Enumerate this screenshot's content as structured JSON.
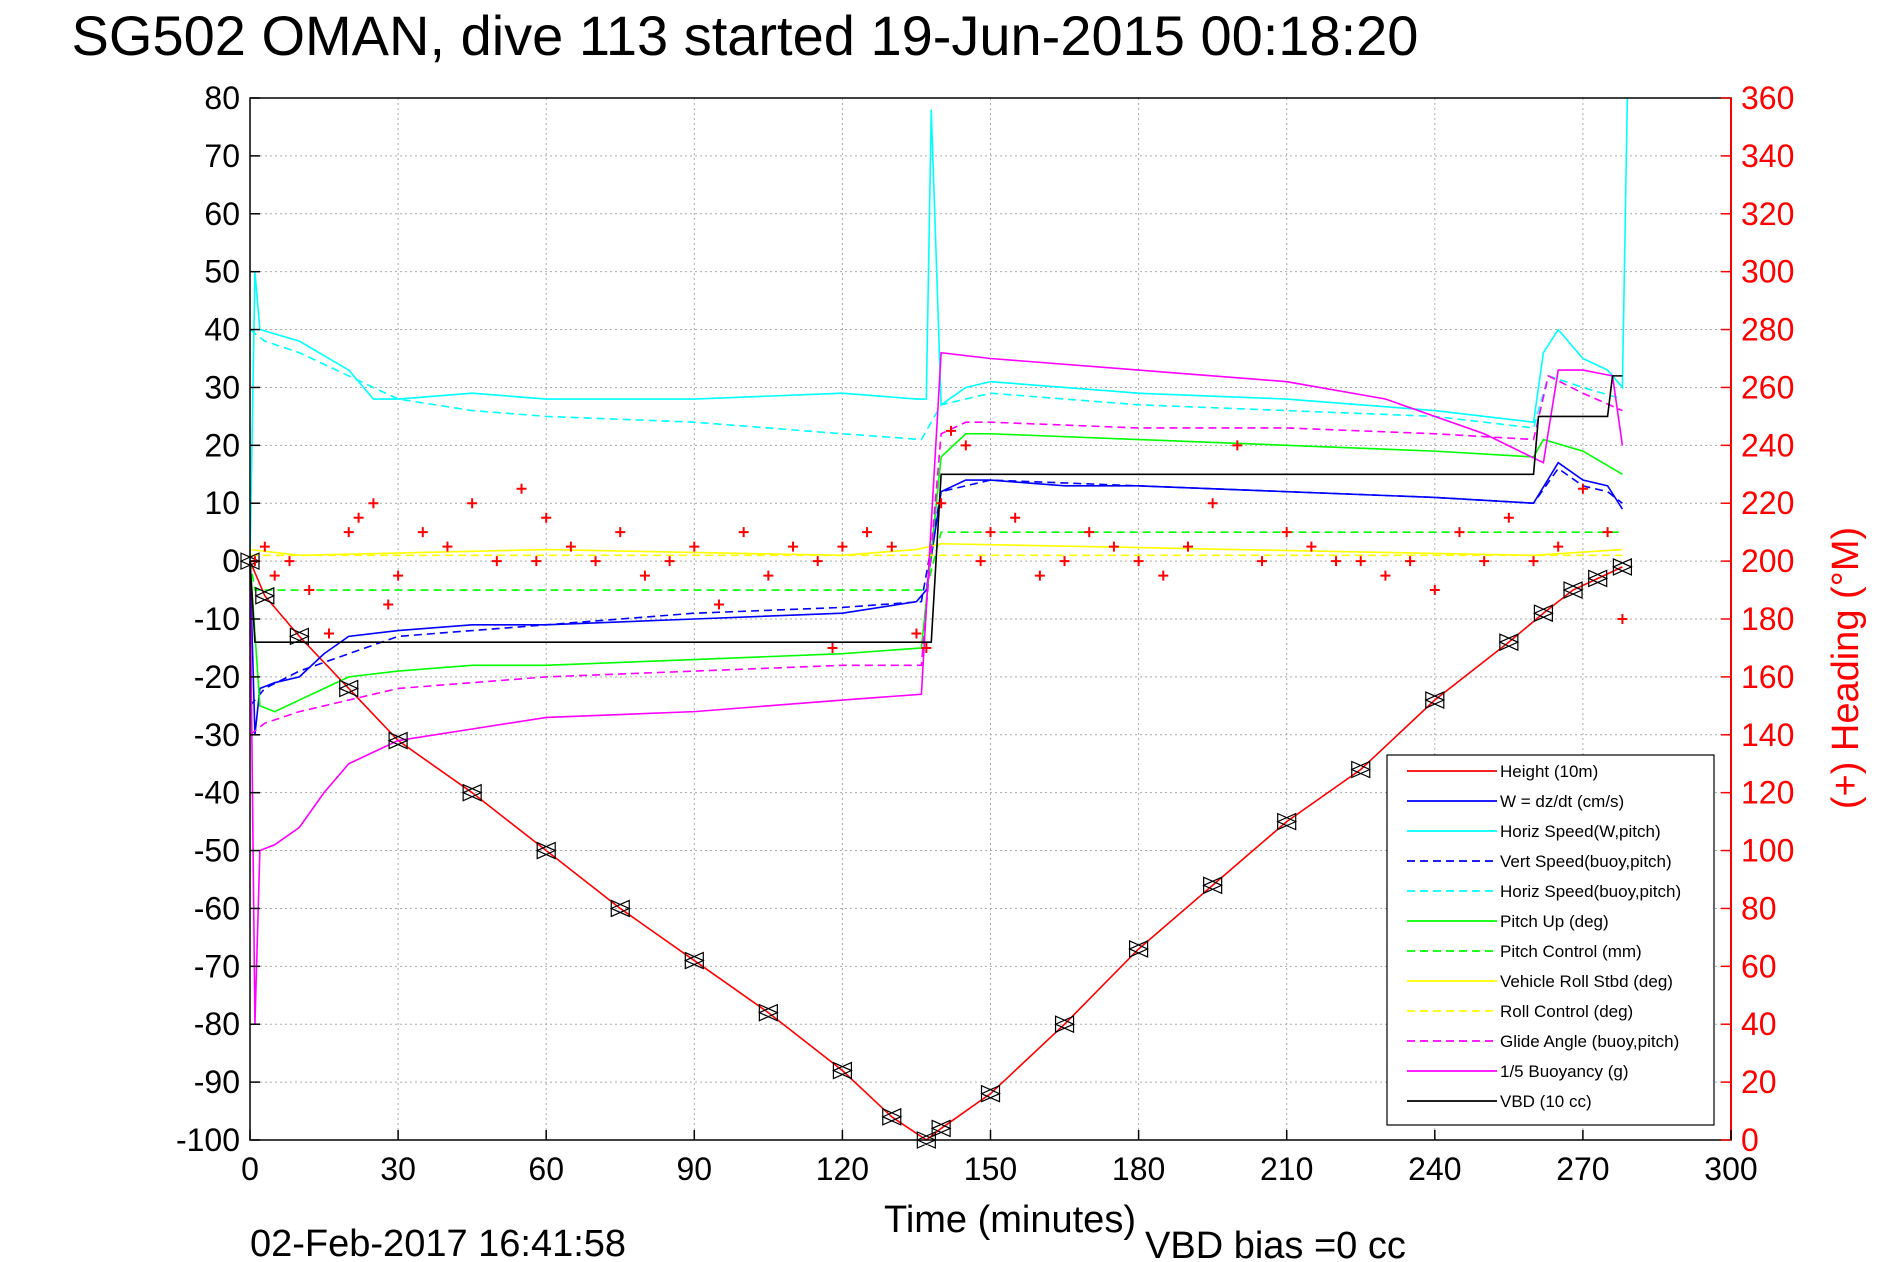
{
  "chart_data": {
    "type": "line",
    "title": "SG502 OMAN, dive 113 started 19-Jun-2015 00:18:20",
    "xlabel": "Time (minutes)",
    "ylabel": "",
    "y2label": "(+) Heading (°M)",
    "xlim": [
      0,
      300
    ],
    "ylim": [
      -100,
      80
    ],
    "y2lim": [
      0,
      360
    ],
    "xticks": [
      "0",
      "30",
      "60",
      "90",
      "120",
      "150",
      "180",
      "210",
      "240",
      "270",
      "300"
    ],
    "yticks": [
      "80",
      "70",
      "60",
      "50",
      "40",
      "30",
      "20",
      "10",
      "0",
      "-10",
      "-20",
      "-30",
      "-40",
      "-50",
      "-60",
      "-70",
      "-80",
      "-90",
      "-100"
    ],
    "y2ticks": [
      "360",
      "340",
      "320",
      "300",
      "280",
      "260",
      "240",
      "220",
      "200",
      "180",
      "160",
      "140",
      "120",
      "100",
      "80",
      "60",
      "40",
      "20",
      "0"
    ],
    "grid": true,
    "legend_position": "bottom-right",
    "footer_date": "02-Feb-2017 16:41:58",
    "footer_note": "VBD bias =0 cc",
    "colors": {
      "red": "#ff0000",
      "blue": "#0000ff",
      "cyan": "#00ffff",
      "green": "#00ff00",
      "yellow": "#ffff00",
      "magenta": "#ff00ff",
      "black": "#000000"
    },
    "series": [
      {
        "name": "Height (10m)",
        "color": "#ff0000",
        "style": "solid",
        "x": [
          0,
          3,
          10,
          20,
          30,
          45,
          60,
          75,
          90,
          105,
          120,
          130,
          137,
          140,
          150,
          165,
          180,
          195,
          210,
          225,
          240,
          255,
          262,
          268,
          273,
          278
        ],
        "y": [
          0,
          -6,
          -13,
          -22,
          -31,
          -40,
          -50,
          -60,
          -69,
          -78,
          -88,
          -96,
          -100,
          -98,
          -92,
          -80,
          -67,
          -56,
          -45,
          -36,
          -24,
          -14,
          -9,
          -5,
          -3,
          -1
        ]
      },
      {
        "name": "W = dz/dt (cm/s)",
        "color": "#0000ff",
        "style": "solid",
        "x": [
          0,
          1,
          2,
          5,
          10,
          15,
          20,
          30,
          45,
          60,
          90,
          120,
          135,
          137,
          140,
          145,
          150,
          165,
          180,
          210,
          240,
          260,
          265,
          270,
          275,
          278
        ],
        "y": [
          0,
          -30,
          -22,
          -21,
          -20,
          -16,
          -13,
          -12,
          -11,
          -11,
          -10,
          -9,
          -7,
          -5,
          12,
          14,
          14,
          13,
          13,
          12,
          11,
          10,
          17,
          14,
          13,
          9
        ]
      },
      {
        "name": "Horiz Speed(W,pitch)",
        "color": "#00ffff",
        "style": "solid",
        "x": [
          0,
          1,
          2,
          10,
          20,
          25,
          30,
          45,
          60,
          90,
          120,
          135,
          137,
          138,
          140,
          145,
          150,
          165,
          180,
          210,
          240,
          260,
          262,
          265,
          270,
          275,
          278,
          279
        ],
        "y": [
          0,
          50,
          40,
          38,
          33,
          28,
          28,
          29,
          28,
          28,
          29,
          28,
          28,
          78,
          27,
          30,
          31,
          30,
          29,
          28,
          26,
          24,
          36,
          40,
          35,
          33,
          30,
          80
        ]
      },
      {
        "name": "Vert Speed(buoy,pitch)",
        "color": "#0000ff",
        "style": "dashed",
        "x": [
          0,
          3,
          10,
          20,
          30,
          45,
          60,
          90,
          120,
          136,
          140,
          150,
          180,
          210,
          240,
          260,
          265,
          270,
          275,
          278
        ],
        "y": [
          -25,
          -22,
          -19,
          -16,
          -13,
          -12,
          -11,
          -9,
          -8,
          -7,
          12,
          14,
          13,
          12,
          11,
          10,
          16,
          13,
          12,
          10
        ]
      },
      {
        "name": "Horiz Speed(buoy,pitch)",
        "color": "#00ffff",
        "style": "dashed",
        "x": [
          0,
          3,
          10,
          20,
          30,
          45,
          60,
          90,
          120,
          136,
          140,
          150,
          180,
          210,
          240,
          260,
          263,
          270,
          278
        ],
        "y": [
          40,
          38,
          36,
          32,
          28,
          26,
          25,
          24,
          22,
          21,
          27,
          29,
          27,
          26,
          25,
          23,
          32,
          30,
          28
        ]
      },
      {
        "name": "Pitch Up (deg)",
        "color": "#00ff00",
        "style": "solid",
        "x": [
          0,
          2,
          5,
          10,
          15,
          20,
          30,
          45,
          60,
          90,
          120,
          136,
          140,
          145,
          150,
          180,
          210,
          240,
          260,
          262,
          270,
          278
        ],
        "y": [
          0,
          -25,
          -26,
          -24,
          -22,
          -20,
          -19,
          -18,
          -18,
          -17,
          -16,
          -15,
          18,
          22,
          22,
          21,
          20,
          19,
          18,
          21,
          19,
          15
        ]
      },
      {
        "name": "Pitch Control (mm)",
        "color": "#00ff00",
        "style": "dashed",
        "x": [
          0,
          1,
          10,
          60,
          120,
          136,
          137,
          140,
          240,
          260,
          262,
          278
        ],
        "y": [
          0,
          -5,
          -5,
          -5,
          -5,
          -5,
          -5,
          5,
          5,
          5,
          5,
          5
        ]
      },
      {
        "name": "Vehicle Roll Stbd (deg)",
        "color": "#ffff00",
        "style": "solid",
        "x": [
          0,
          10,
          60,
          120,
          135,
          140,
          200,
          260,
          278
        ],
        "y": [
          2,
          1,
          2,
          1,
          2,
          3,
          2,
          1,
          2
        ]
      },
      {
        "name": "Roll Control (deg)",
        "color": "#ffff00",
        "style": "dashed",
        "x": [
          0,
          10,
          60,
          120,
          136,
          140,
          200,
          260,
          278
        ],
        "y": [
          1,
          1,
          1,
          1,
          1,
          1,
          1,
          1,
          1
        ]
      },
      {
        "name": "Glide Angle (buoy,pitch)",
        "color": "#ff00ff",
        "style": "dashed",
        "x": [
          0,
          3,
          10,
          20,
          30,
          45,
          60,
          90,
          120,
          136,
          140,
          145,
          150,
          180,
          210,
          240,
          260,
          263,
          270,
          278
        ],
        "y": [
          -30,
          -28,
          -26,
          -24,
          -22,
          -21,
          -20,
          -19,
          -18,
          -18,
          22,
          24,
          24,
          23,
          23,
          22,
          21,
          32,
          29,
          26
        ]
      },
      {
        "name": "1/5 Buoyancy (g)",
        "color": "#ff00ff",
        "style": "solid",
        "x": [
          0,
          1,
          2,
          5,
          10,
          15,
          20,
          25,
          30,
          45,
          60,
          90,
          120,
          136,
          140,
          150,
          180,
          210,
          230,
          250,
          262,
          265,
          270,
          276,
          278
        ],
        "y": [
          0,
          -80,
          -50,
          -49,
          -46,
          -40,
          -35,
          -33,
          -31,
          -29,
          -27,
          -26,
          -24,
          -23,
          36,
          35,
          33,
          31,
          28,
          22,
          17,
          33,
          33,
          32,
          20
        ]
      },
      {
        "name": "VBD (10 cc)",
        "color": "#000000",
        "style": "solid",
        "x": [
          0,
          1,
          2,
          20,
          60,
          120,
          136,
          138,
          140,
          260,
          261,
          275,
          276,
          278
        ],
        "y": [
          0,
          -14,
          -14,
          -14,
          -14,
          -14,
          -14,
          -14,
          15,
          15,
          25,
          25,
          32,
          32
        ]
      }
    ],
    "heading_series": {
      "name": "(+) Heading",
      "color": "#ff0000",
      "marker": "+",
      "x": [
        1,
        3,
        5,
        8,
        12,
        16,
        20,
        22,
        25,
        28,
        30,
        35,
        40,
        45,
        50,
        55,
        58,
        60,
        65,
        70,
        75,
        80,
        85,
        90,
        95,
        100,
        105,
        110,
        115,
        118,
        120,
        125,
        130,
        135,
        137,
        140,
        142,
        145,
        148,
        150,
        155,
        160,
        165,
        170,
        175,
        180,
        185,
        190,
        195,
        200,
        205,
        210,
        215,
        220,
        225,
        230,
        235,
        240,
        245,
        250,
        255,
        260,
        265,
        270,
        275,
        278
      ],
      "y": [
        200,
        205,
        195,
        200,
        190,
        175,
        210,
        215,
        220,
        185,
        195,
        210,
        205,
        220,
        200,
        225,
        200,
        215,
        205,
        200,
        210,
        195,
        200,
        205,
        185,
        210,
        195,
        205,
        200,
        170,
        205,
        210,
        205,
        175,
        170,
        220,
        245,
        240,
        200,
        210,
        215,
        195,
        200,
        210,
        205,
        200,
        195,
        205,
        220,
        240,
        200,
        210,
        205,
        200,
        200,
        195,
        200,
        190,
        210,
        200,
        215,
        200,
        205,
        225,
        210,
        180
      ]
    }
  }
}
